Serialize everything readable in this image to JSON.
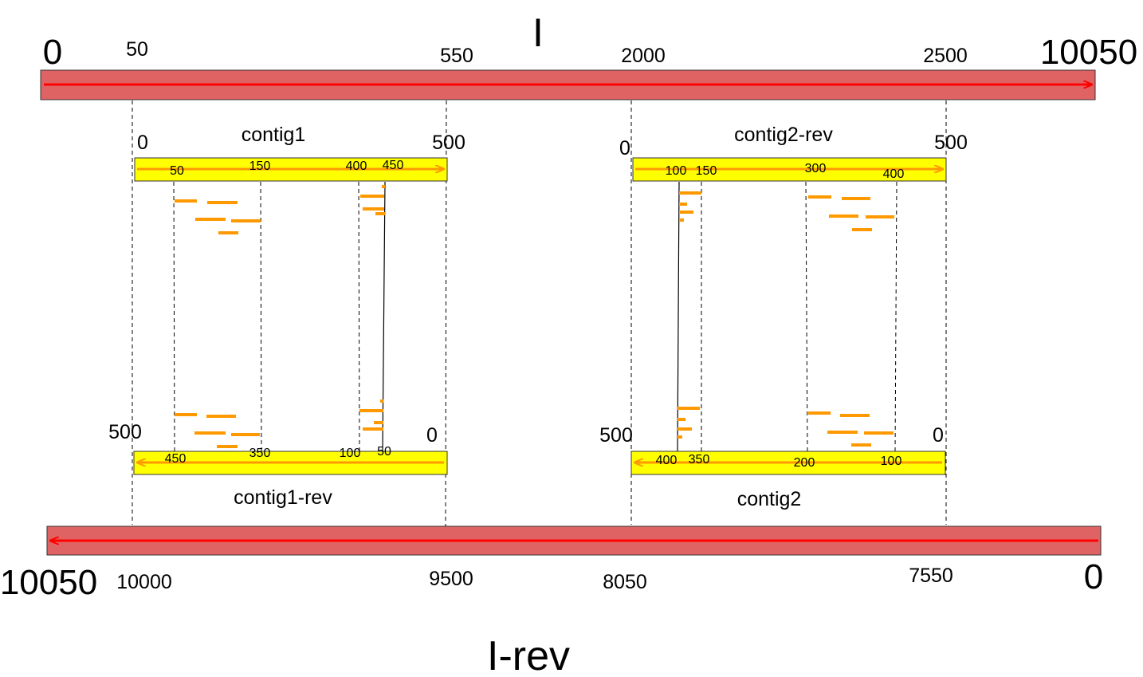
{
  "colors": {
    "chromosome_fill": "#e06363",
    "chromosome_arrow": "#ff0000",
    "contig_fill": "#ffff00",
    "contig_arrow": "#ff9900",
    "read": "#ff9900",
    "line": "#000000"
  },
  "chromosome_top": {
    "label": "I",
    "start_label": "0",
    "end_label": "10050",
    "ticks": [
      "50",
      "550",
      "2000",
      "2500"
    ]
  },
  "chromosome_bottom": {
    "label": "I-rev",
    "start_label": "10050",
    "end_label": "0",
    "ticks": [
      "10000",
      "9500",
      "8050",
      "7550"
    ]
  },
  "contigs": {
    "contig1": {
      "name": "contig1",
      "start_label": "0",
      "end_label": "500",
      "ticks": [
        "50",
        "150",
        "400",
        "450"
      ]
    },
    "contig2_rev": {
      "name": "contig2-rev",
      "start_label": "0",
      "end_label": "500",
      "ticks": [
        "100",
        "150",
        "300",
        "400"
      ]
    },
    "contig1_rev": {
      "name": "contig1-rev",
      "start_label": "500",
      "end_label": "0",
      "ticks": [
        "450",
        "350",
        "100",
        "50"
      ]
    },
    "contig2": {
      "name": "contig2",
      "start_label": "500",
      "end_label": "0",
      "ticks": [
        "400",
        "350",
        "200",
        "100"
      ]
    }
  }
}
